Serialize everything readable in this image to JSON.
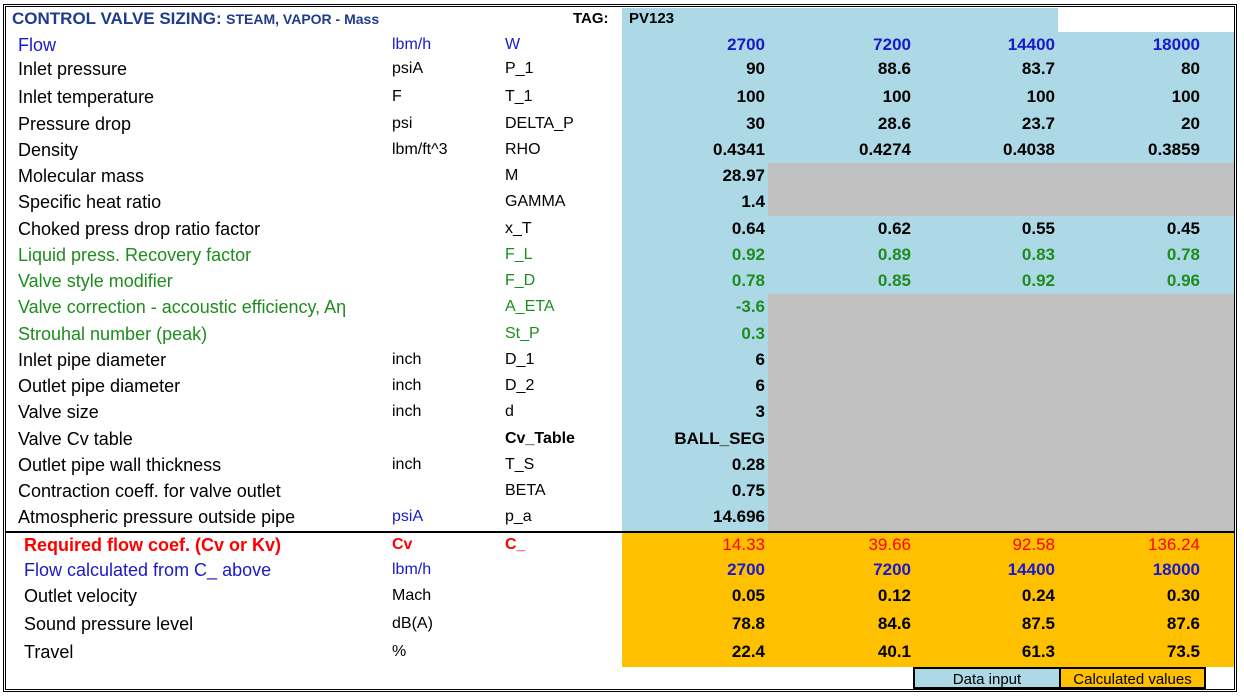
{
  "title": {
    "main": "CONTROL VALVE SIZING:",
    "sub": "STEAM, VAPOR - Mass",
    "tag_label": "TAG:",
    "tag_value": "PV123"
  },
  "inputs": [
    {
      "label": "Flow",
      "unit": "lbm/h",
      "symbol": "W",
      "v1": "2700",
      "v2": "7200",
      "v3": "14400",
      "v4": "18000"
    },
    {
      "label": "Inlet pressure",
      "unit": "psiA",
      "symbol": "P_1",
      "v1": "90",
      "v2": "88.6",
      "v3": "83.7",
      "v4": "80"
    },
    {
      "label": "Inlet temperature",
      "unit": "F",
      "symbol": "T_1",
      "v1": "100",
      "v2": "100",
      "v3": "100",
      "v4": "100"
    },
    {
      "label": "Pressure drop",
      "unit": "psi",
      "symbol": "DELTA_P",
      "v1": "30",
      "v2": "28.6",
      "v3": "23.7",
      "v4": "20"
    },
    {
      "label": "Density",
      "unit": "lbm/ft^3",
      "symbol": "RHO",
      "v1": "0.4341",
      "v2": "0.4274",
      "v3": "0.4038",
      "v4": "0.3859"
    },
    {
      "label": "Molecular mass",
      "unit": "",
      "symbol": "M",
      "v1": "28.97",
      "v2": "",
      "v3": "",
      "v4": ""
    },
    {
      "label": "Specific heat ratio",
      "unit": "",
      "symbol": "GAMMA",
      "v1": "1.4",
      "v2": "",
      "v3": "",
      "v4": ""
    },
    {
      "label": "Choked press drop ratio factor",
      "unit": "",
      "symbol": "x_T",
      "v1": "0.64",
      "v2": "0.62",
      "v3": "0.55",
      "v4": "0.45"
    },
    {
      "label": "Liquid press. Recovery factor",
      "unit": "",
      "symbol": "F_L",
      "v1": "0.92",
      "v2": "0.89",
      "v3": "0.83",
      "v4": "0.78"
    },
    {
      "label": "Valve style modifier",
      "unit": "",
      "symbol": "F_D",
      "v1": "0.78",
      "v2": "0.85",
      "v3": "0.92",
      "v4": "0.96"
    },
    {
      "label": "Valve correction - accoustic efficiency, Aη",
      "unit": "",
      "symbol": "A_ETA",
      "v1": "-3.6",
      "v2": "",
      "v3": "",
      "v4": ""
    },
    {
      "label": "Strouhal number (peak)",
      "unit": "",
      "symbol": "St_P",
      "v1": "0.3",
      "v2": "",
      "v3": "",
      "v4": ""
    },
    {
      "label": "Inlet pipe diameter",
      "unit": "inch",
      "symbol": "D_1",
      "v1": "6",
      "v2": "",
      "v3": "",
      "v4": ""
    },
    {
      "label": "Outlet pipe diameter",
      "unit": "inch",
      "symbol": "D_2",
      "v1": "6",
      "v2": "",
      "v3": "",
      "v4": ""
    },
    {
      "label": "Valve size",
      "unit": "inch",
      "symbol": "d",
      "v1": "3",
      "v2": "",
      "v3": "",
      "v4": ""
    },
    {
      "label": "Valve Cv table",
      "unit": "",
      "symbol": "Cv_Table",
      "v1": "BALL_SEG",
      "v2": "",
      "v3": "",
      "v4": ""
    },
    {
      "label": "Outlet pipe wall thickness",
      "unit": "inch",
      "symbol": "T_S",
      "v1": "0.28",
      "v2": "",
      "v3": "",
      "v4": ""
    },
    {
      "label": "Contraction coeff. for valve outlet",
      "unit": "",
      "symbol": "BETA",
      "v1": "0.75",
      "v2": "",
      "v3": "",
      "v4": ""
    },
    {
      "label": "Atmospheric pressure outside pipe",
      "unit": "psiA",
      "symbol": "p_a",
      "v1": "14.696",
      "v2": "",
      "v3": "",
      "v4": ""
    }
  ],
  "outputs": [
    {
      "label": "Required flow coef. (Cv or Kv)",
      "unit": "Cv",
      "symbol": "C_",
      "v1": "14.33",
      "v2": "39.66",
      "v3": "92.58",
      "v4": "136.24"
    },
    {
      "label": "Flow calculated from C_ above",
      "unit": "lbm/h",
      "symbol": "",
      "v1": "2700",
      "v2": "7200",
      "v3": "14400",
      "v4": "18000"
    },
    {
      "label": "Outlet velocity",
      "unit": "Mach",
      "symbol": "",
      "v1": "0.05",
      "v2": "0.12",
      "v3": "0.24",
      "v4": "0.30"
    },
    {
      "label": "Sound pressure level",
      "unit": "dB(A)",
      "symbol": "",
      "v1": "78.8",
      "v2": "84.6",
      "v3": "87.5",
      "v4": "87.6"
    },
    {
      "label": "Travel",
      "unit": "%",
      "symbol": "",
      "v1": "22.4",
      "v2": "40.1",
      "v3": "61.3",
      "v4": "73.5"
    }
  ],
  "legend": {
    "input": "Data input",
    "calculated": "Calculated values"
  },
  "colors": {
    "input_bg": "#add8e6",
    "calc_bg": "#ffc000",
    "unused_bg": "#c0c0c0",
    "title": "#1f3b8c",
    "blue_text": "#1a1ac8",
    "green_text": "#1e8c1e",
    "red_text": "#ff0000"
  }
}
